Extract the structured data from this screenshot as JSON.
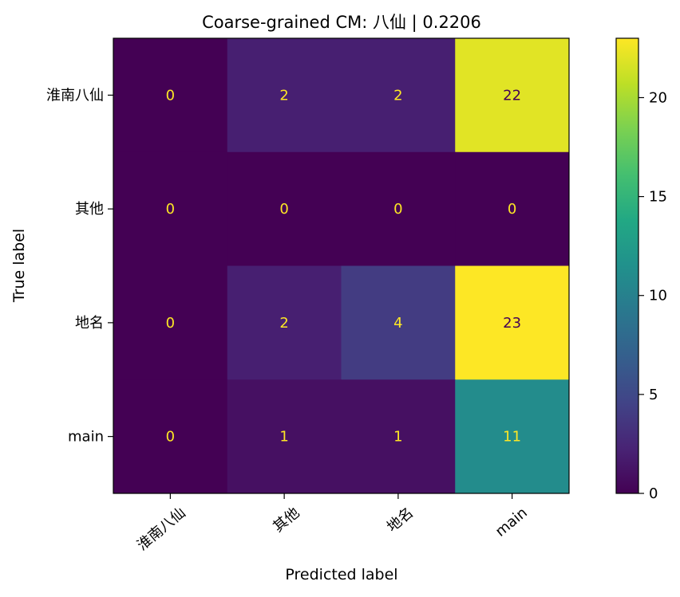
{
  "chart_data": {
    "type": "heatmap",
    "title": "Coarse-grained CM: 八仙 | 0.2206",
    "xlabel": "Predicted label",
    "ylabel": "True label",
    "x_categories": [
      "淮南八仙",
      "其他",
      "地名",
      "main"
    ],
    "y_categories": [
      "淮南八仙",
      "其他",
      "地名",
      "main"
    ],
    "values": [
      [
        0,
        2,
        2,
        22
      ],
      [
        0,
        0,
        0,
        0
      ],
      [
        0,
        2,
        4,
        23
      ],
      [
        0,
        1,
        1,
        11
      ]
    ],
    "colormap": "viridis",
    "vmin": 0,
    "vmax": 23,
    "colorbar_ticks": [
      0,
      5,
      10,
      15,
      20
    ],
    "x_tick_rotation_deg": 40,
    "grid": false
  }
}
